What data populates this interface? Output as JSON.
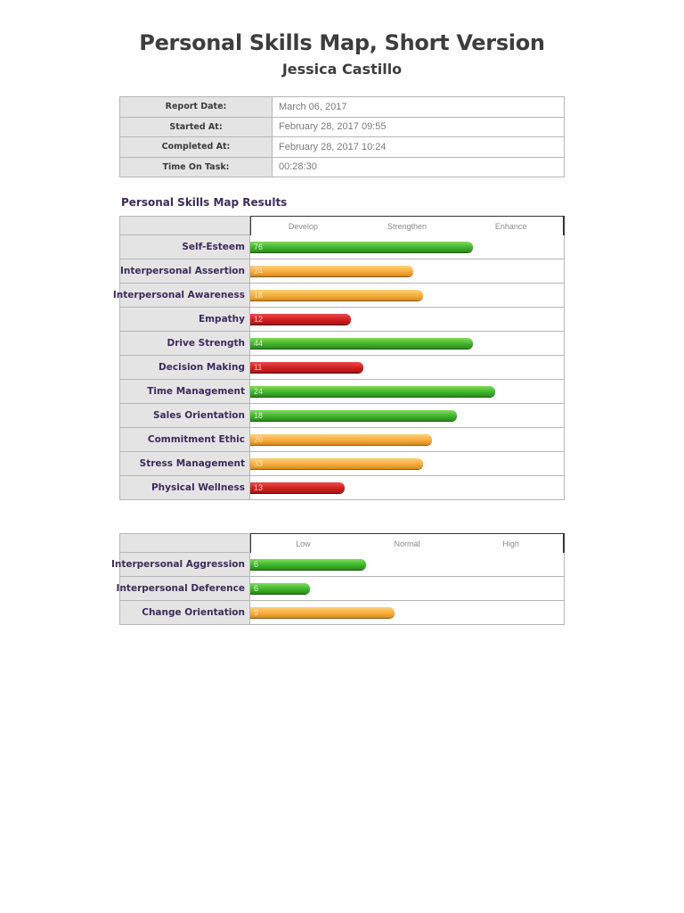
{
  "header": {
    "title": "Personal Skills Map, Short Version",
    "subtitle": "Jessica Castillo"
  },
  "info": [
    {
      "label": "Report Date:",
      "value": "March 06, 2017"
    },
    {
      "label": "Started At:",
      "value": "February 28, 2017 09:55"
    },
    {
      "label": "Completed At:",
      "value": "February 28, 2017 10:24"
    },
    {
      "label": "Time On Task:",
      "value": "00:28:30"
    }
  ],
  "section_title": "Personal Skills Map Results",
  "colors": {
    "green": "#3fb62c",
    "orange": "#f8ad3a",
    "red": "#d21f1f",
    "label_text": "#3b2c5a"
  },
  "chart_data": [
    {
      "type": "bar",
      "orientation": "horizontal",
      "title": "Personal Skills Map Results",
      "zones": [
        "Develop",
        "Strengthen",
        "Enhance"
      ],
      "categories": [
        "Self-Esteem",
        "Interpersonal Assertion",
        "Interpersonal Awareness",
        "Empathy",
        "Drive Strength",
        "Decision Making",
        "Time Management",
        "Sales Orientation",
        "Commitment Ethic",
        "Stress Management",
        "Physical Wellness"
      ],
      "values": [
        76,
        24,
        18,
        12,
        44,
        11,
        24,
        18,
        20,
        33,
        13
      ],
      "bar_length_pct": [
        71,
        52,
        55,
        32,
        71,
        36,
        78,
        66,
        58,
        55,
        30
      ],
      "bar_colors": [
        "green",
        "orange",
        "orange",
        "red",
        "green",
        "red",
        "green",
        "green",
        "orange",
        "orange",
        "red"
      ]
    },
    {
      "type": "bar",
      "orientation": "horizontal",
      "title": "",
      "zones": [
        "Low",
        "Normal",
        "High"
      ],
      "categories": [
        "Interpersonal Aggression",
        "Interpersonal Deference",
        "Change Orientation"
      ],
      "values": [
        6,
        6,
        9
      ],
      "bar_length_pct": [
        37,
        19,
        46
      ],
      "bar_colors": [
        "green",
        "green",
        "orange"
      ]
    }
  ]
}
